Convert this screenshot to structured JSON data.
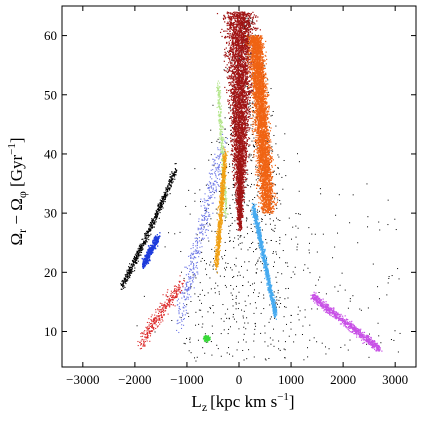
{
  "chart_data": {
    "type": "scatter",
    "title": "",
    "xlabel": "L",
    "xlabel_sub": "z",
    "xlabel_units": "[kpc km s",
    "xlabel_units_sup": "−1",
    "xlabel_units_end": "]",
    "ylabel_parts": {
      "omega1": "Ω",
      "sub1": "r",
      "minus": " − ",
      "omega2": "Ω",
      "sub2": "φ",
      "units": " [Gyr",
      "sup": "−1",
      "end": "]"
    },
    "xlim": [
      -3400,
      3400
    ],
    "ylim": [
      4,
      65
    ],
    "xticks": [
      -3000,
      -2000,
      -1000,
      0,
      1000,
      2000,
      3000
    ],
    "xtick_labels": [
      "−3000",
      "−2000",
      "−1000",
      "0",
      "1000",
      "2000",
      "3000"
    ],
    "yticks": [
      10,
      20,
      30,
      40,
      50,
      60
    ],
    "ytick_labels": [
      "10",
      "20",
      "30",
      "40",
      "50",
      "60"
    ],
    "grid": false,
    "legend": "none",
    "marker": "tiny dot",
    "series": [
      {
        "color": "#000000",
        "role": "background black points",
        "density": "sparse across full range",
        "clusters": [
          {
            "x": [
              -2300,
              -1200
            ],
            "y": [
              17,
              36
            ],
            "trend": "diagonal rising arc on left"
          },
          {
            "x": [
              -1200,
              3100
            ],
            "y": [
              5,
              64
            ],
            "trend": "scattered"
          }
        ]
      },
      {
        "color": "#1e3cdc",
        "clusters": [
          {
            "x": [
              -1900,
              -1500
            ],
            "y": [
              20,
              26
            ]
          }
        ]
      },
      {
        "color": "#6e78e6",
        "clusters": [
          {
            "x": [
              -1200,
              -300
            ],
            "y": [
              12,
              45
            ]
          }
        ]
      },
      {
        "color": "#dc2828",
        "clusters": [
          {
            "x": [
              -2000,
              -1100
            ],
            "y": [
              6,
              19
            ]
          }
        ]
      },
      {
        "color": "#38d938",
        "clusters": [
          {
            "x": [
              -750,
              -450
            ],
            "y": [
              7.5,
              10
            ]
          }
        ]
      },
      {
        "color": "#b4e68c",
        "clusters": [
          {
            "x": [
              -450,
              -150
            ],
            "y": [
              28,
              52
            ]
          }
        ]
      },
      {
        "color": "#f0a014",
        "clusters": [
          {
            "x": [
              -550,
              -250
            ],
            "y": [
              20,
              40
            ]
          }
        ]
      },
      {
        "color": "#a01414",
        "clusters": [
          {
            "x": [
              -300,
              350
            ],
            "y": [
              27,
              64
            ]
          }
        ]
      },
      {
        "color": "#f06414",
        "clusters": [
          {
            "x": [
              200,
              850
            ],
            "y": [
              30,
              62
            ]
          }
        ]
      },
      {
        "color": "#46aaf0",
        "clusters": [
          {
            "x": [
              200,
              700
            ],
            "y": [
              12,
              32
            ]
          }
        ]
      },
      {
        "color": "#c850e6",
        "clusters": [
          {
            "x": [
              1300,
              2700
            ],
            "y": [
              6,
              18
            ]
          }
        ]
      }
    ]
  }
}
